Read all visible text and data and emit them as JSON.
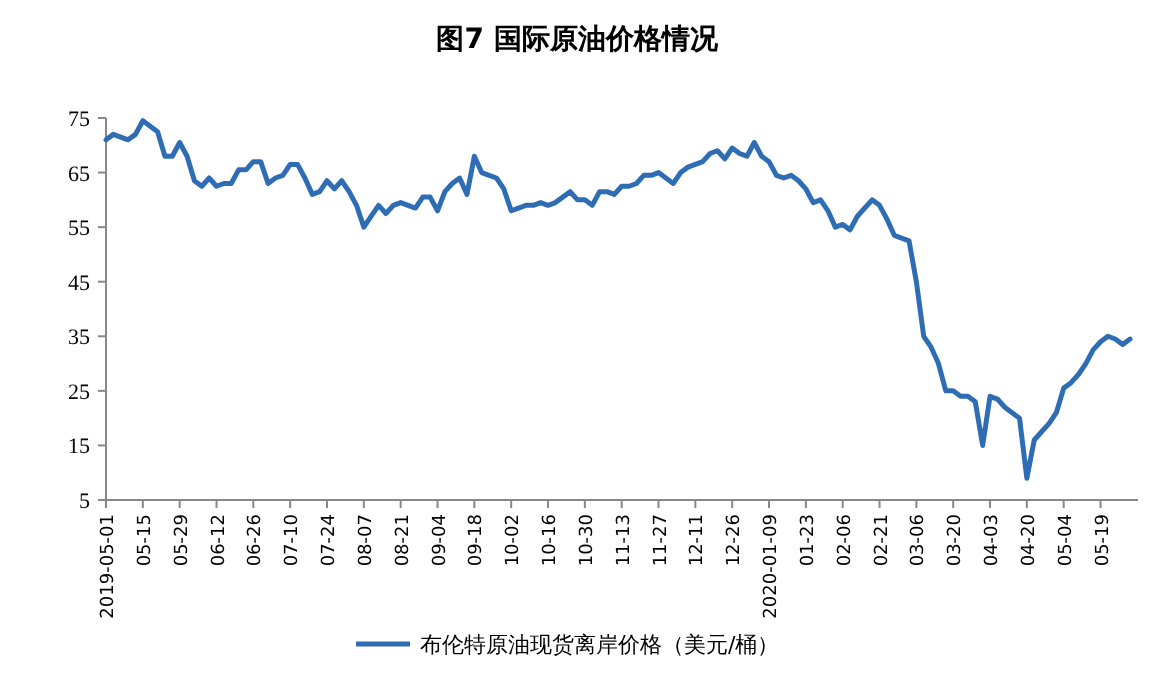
{
  "chart_data": {
    "type": "line",
    "title": "图7  国际原油价格情况",
    "categories": [
      "2019-05-01",
      null,
      null,
      null,
      null,
      "05-15",
      null,
      null,
      null,
      null,
      "05-29",
      null,
      null,
      null,
      null,
      "06-12",
      null,
      null,
      null,
      null,
      "06-26",
      null,
      null,
      null,
      null,
      "07-10",
      null,
      null,
      null,
      null,
      "07-24",
      null,
      null,
      null,
      null,
      "08-07",
      null,
      null,
      null,
      null,
      "08-21",
      null,
      null,
      null,
      null,
      "09-04",
      null,
      null,
      null,
      null,
      "09-18",
      null,
      null,
      null,
      null,
      "10-02",
      null,
      null,
      null,
      null,
      "10-16",
      null,
      null,
      null,
      null,
      "10-30",
      null,
      null,
      null,
      null,
      "11-13",
      null,
      null,
      null,
      null,
      "11-27",
      null,
      null,
      null,
      null,
      "12-11",
      null,
      null,
      null,
      null,
      "12-26",
      null,
      null,
      null,
      null,
      "2020-01-09",
      null,
      null,
      null,
      null,
      "01-23",
      null,
      null,
      null,
      null,
      "02-06",
      null,
      null,
      null,
      null,
      "02-21",
      null,
      null,
      null,
      null,
      "03-06",
      null,
      null,
      null,
      null,
      "03-20",
      null,
      null,
      null,
      null,
      "04-03",
      null,
      null,
      null,
      null,
      "04-20",
      null,
      null,
      null,
      null,
      "05-04",
      null,
      null,
      null,
      null,
      "05-19",
      null,
      null,
      null,
      null
    ],
    "series": [
      {
        "name": "布伦特原油现货离岸价格（美元/桶）",
        "color": "#2e6db4",
        "values": [
          71,
          72,
          71.5,
          71,
          72,
          74.5,
          73.5,
          72.5,
          68,
          68,
          70.5,
          68,
          63.5,
          62.5,
          64,
          62.5,
          63,
          63,
          65.5,
          65.5,
          67,
          67,
          63,
          64,
          64.5,
          66.5,
          66.5,
          64,
          61,
          61.5,
          63.5,
          62,
          63.5,
          61.5,
          59,
          55,
          57,
          59,
          57.5,
          59,
          59.5,
          59,
          58.5,
          60.5,
          60.5,
          58,
          61.5,
          63,
          64,
          61,
          68,
          65,
          64.5,
          64,
          62,
          58,
          58.5,
          59,
          59,
          59.5,
          59,
          59.5,
          60.5,
          61.5,
          60,
          60,
          59,
          61.5,
          61.5,
          61,
          62.5,
          62.5,
          63,
          64.5,
          64.5,
          65,
          64,
          63,
          65,
          66,
          66.5,
          67,
          68.5,
          69,
          67.5,
          69.5,
          68.5,
          68,
          70.5,
          68,
          67,
          64.5,
          64,
          64.5,
          63.5,
          62,
          59.5,
          60,
          58,
          55,
          55.5,
          54.5,
          57,
          58.5,
          60,
          59,
          56.5,
          53.5,
          53,
          52.5,
          45,
          35,
          33,
          30,
          25,
          25,
          24,
          24,
          23,
          15,
          24,
          23.5,
          22,
          21,
          20,
          9,
          16,
          17.5,
          19,
          21,
          25.5,
          26.5,
          28,
          30,
          32.5,
          34,
          35,
          34.5,
          33.5,
          34.5
        ]
      }
    ],
    "ylim": [
      5,
      75
    ],
    "yticks": [
      5,
      15,
      25,
      35,
      45,
      55,
      65,
      75
    ],
    "legend": "bottom"
  }
}
